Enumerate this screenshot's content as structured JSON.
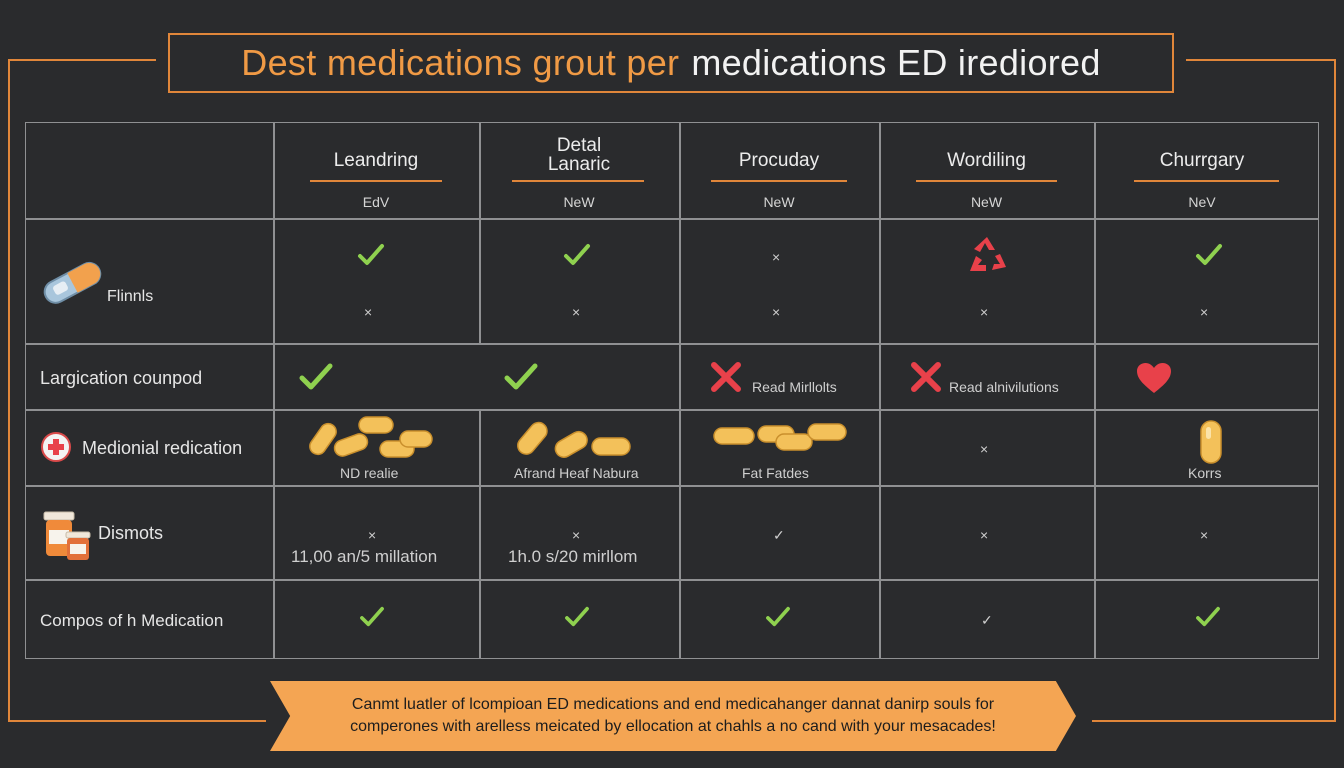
{
  "title": {
    "part1": "Dest medications grout per",
    "part2": "medications ED irediored"
  },
  "columns": [
    {
      "name": "Leandring",
      "sub": "EdV"
    },
    {
      "name": "Detal\nLanaric",
      "sub": "NeW"
    },
    {
      "name": "Procuday",
      "sub": "NeW"
    },
    {
      "name": "Wordiling",
      "sub": "NeW"
    },
    {
      "name": "Churrgary",
      "sub": "NeV"
    }
  ],
  "rows": {
    "r1": {
      "label": "Flinnls"
    },
    "r2": {
      "label": "Largication counpod",
      "c3": "Read Mirllolts",
      "c4": "Read alnivilutions"
    },
    "r3": {
      "label": "Medionial redication",
      "c1": "ND realie",
      "c2": "Afrand Heaf Nabura",
      "c3": "Fat Fatdes",
      "c5": "Korrs"
    },
    "r4": {
      "label": "Dismots",
      "c1": "11,00 an/5 millation",
      "c2": "1h.0 s/20 mirllom"
    },
    "r5": {
      "label": "Compos of h Medication"
    }
  },
  "symbols": {
    "cross": "×",
    "tick": "✓"
  },
  "banner": {
    "line1": "Canmt luatler of lcompioan ED medications and end medicahanger dannat danirp souls for",
    "line2": "comperones with arelless meicated by ellocation at chahls a no cand with your mesacades!"
  },
  "colors": {
    "accent": "#e0863a",
    "check": "#8fd14f",
    "red": "#e8414a",
    "pill": "#f3c15a"
  }
}
